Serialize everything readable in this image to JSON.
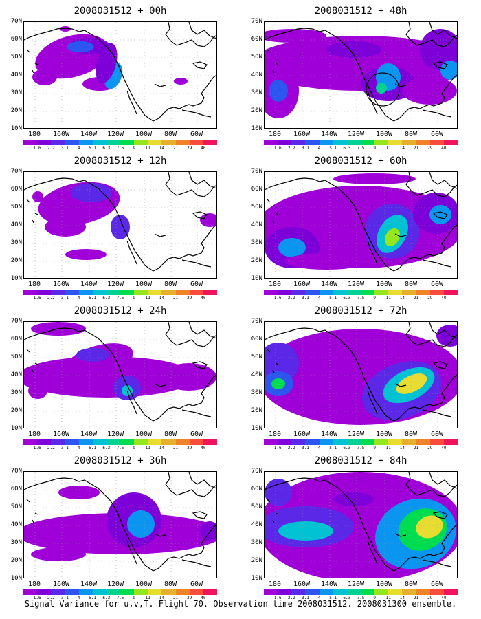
{
  "caption": "Signal Variance for u,v,T. Flight 70. Observation time 2008031512. 2008031300 ensemble.",
  "lat_labels": [
    "70N",
    "60N",
    "50N",
    "40N",
    "30N",
    "20N",
    "10N"
  ],
  "lon_labels": [
    "180",
    "160W",
    "140W",
    "120W",
    "100W",
    "80W",
    "60W"
  ],
  "colorbar": {
    "labels": [
      "1.6",
      "2.2",
      "3.1",
      "4",
      "5.1",
      "6.3",
      "7.5",
      "9",
      "11",
      "14",
      "21",
      "29",
      "40"
    ],
    "colors": [
      "#9f00d8",
      "#7d00d8",
      "#5a28e6",
      "#2d55f0",
      "#0a96f0",
      "#00c2d2",
      "#00d296",
      "#00dc50",
      "#96e61e",
      "#e6dc32",
      "#e6af2d",
      "#f08228",
      "#fa4b3c",
      "#f0145a"
    ]
  },
  "panels": [
    {
      "title": "2008031512 + 00h"
    },
    {
      "title": "2008031512 + 48h"
    },
    {
      "title": "2008031512 + 12h"
    },
    {
      "title": "2008031512 + 60h"
    },
    {
      "title": "2008031512 + 24h"
    },
    {
      "title": "2008031512 + 72h"
    },
    {
      "title": "2008031512 + 36h"
    },
    {
      "title": "2008031512 + 84h"
    }
  ]
}
